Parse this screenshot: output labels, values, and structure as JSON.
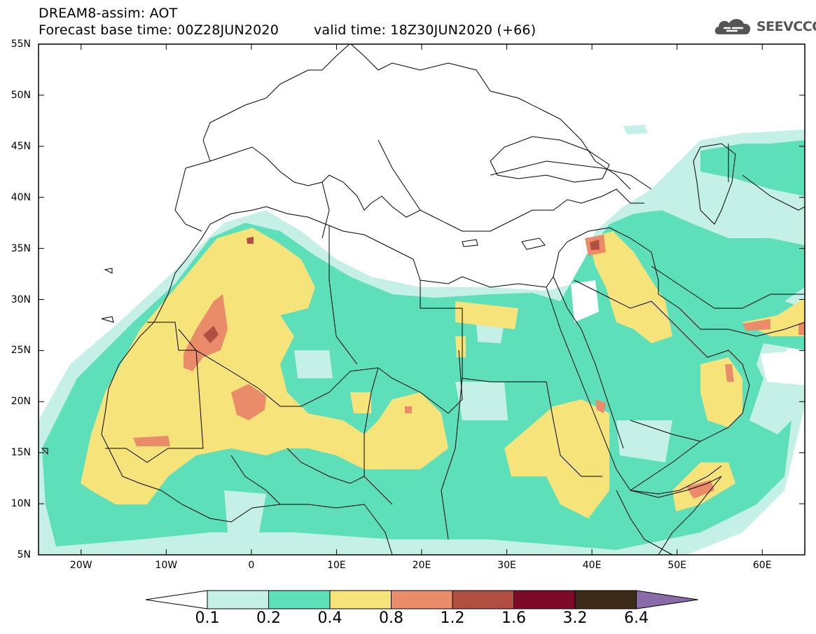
{
  "header": {
    "title": "DREAM8-assim: AOT",
    "base_label": "Forecast base time: 00Z28JUN2020",
    "valid_label": "valid time: 18Z30JUN2020 (+66)",
    "logo_text": "SEEVCCC",
    "logo_icon": "cloud-icon"
  },
  "map": {
    "lat_range": [
      5,
      55
    ],
    "lon_range": [
      -25,
      65
    ],
    "lat_ticks": [
      "55N",
      "50N",
      "45N",
      "40N",
      "35N",
      "30N",
      "25N",
      "20N",
      "15N",
      "10N",
      "5N"
    ],
    "lon_ticks": [
      "20W",
      "10W",
      "0",
      "10E",
      "20E",
      "30E",
      "40E",
      "50E",
      "60E"
    ],
    "lat_values": [
      55,
      50,
      45,
      40,
      35,
      30,
      25,
      20,
      15,
      10,
      5
    ],
    "lon_values": [
      -20,
      -10,
      0,
      10,
      20,
      30,
      40,
      50,
      60
    ]
  },
  "legend": {
    "labels": [
      "0.1",
      "0.2",
      "0.4",
      "0.8",
      "1.2",
      "1.6",
      "3.2",
      "6.4"
    ],
    "colors": [
      "#ffffff",
      "#c4f0e7",
      "#5ddfba",
      "#f6e47a",
      "#ea8c69",
      "#b14f43",
      "#7e0a2a",
      "#3d2a18",
      "#8b6aaa"
    ]
  }
}
